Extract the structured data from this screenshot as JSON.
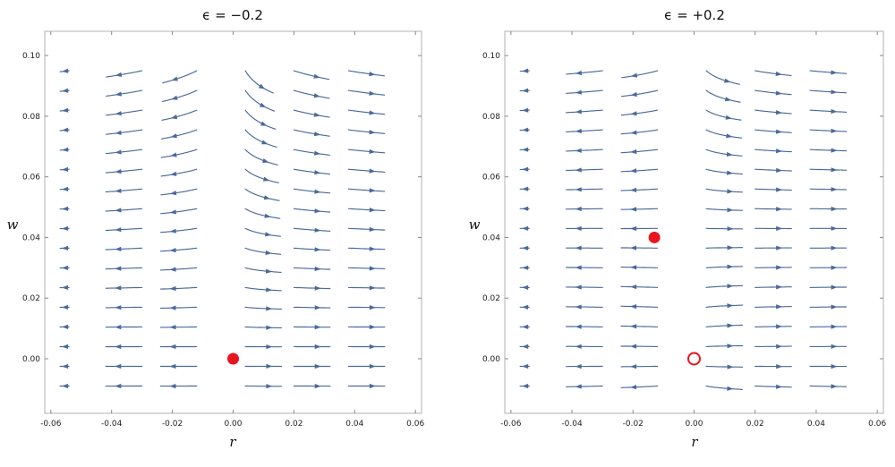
{
  "chart_data": [
    {
      "type": "streamplot",
      "title": "ϵ = −0.2",
      "xlabel": "r",
      "ylabel": "w",
      "xlim": [
        -0.062,
        0.062
      ],
      "ylim": [
        -0.018,
        0.108
      ],
      "xticks": [
        "-0.06",
        "-0.04",
        "-0.02",
        "0.00",
        "0.02",
        "0.04",
        "0.06"
      ],
      "xtick_values": [
        -0.06,
        -0.04,
        -0.02,
        0.0,
        0.02,
        0.04,
        0.06
      ],
      "yticks": [
        "0.00",
        "0.02",
        "0.04",
        "0.06",
        "0.08",
        "0.10"
      ],
      "ytick_values": [
        0.0,
        0.02,
        0.04,
        0.06,
        0.08,
        0.1
      ],
      "fixed_points": [
        {
          "r": 0.0,
          "w": 0.0,
          "style": "filled",
          "color": "#e8141e"
        }
      ],
      "stream_color": "#4a6a9a"
    },
    {
      "type": "streamplot",
      "title": "ϵ = +0.2",
      "xlabel": "r",
      "ylabel": "w",
      "xlim": [
        -0.062,
        0.062
      ],
      "ylim": [
        -0.018,
        0.108
      ],
      "xticks": [
        "-0.06",
        "-0.04",
        "-0.02",
        "0.00",
        "0.02",
        "0.04",
        "0.06"
      ],
      "xtick_values": [
        -0.06,
        -0.04,
        -0.02,
        0.0,
        0.02,
        0.04,
        0.06
      ],
      "yticks": [
        "0.00",
        "0.02",
        "0.04",
        "0.06",
        "0.08",
        "0.10"
      ],
      "ytick_values": [
        0.0,
        0.02,
        0.04,
        0.06,
        0.08,
        0.1
      ],
      "fixed_points": [
        {
          "r": -0.013,
          "w": 0.04,
          "style": "filled",
          "color": "#e8141e"
        },
        {
          "r": 0.0,
          "w": 0.0,
          "style": "open",
          "color": "#e8141e"
        }
      ],
      "stream_color": "#4a6a9a"
    }
  ]
}
